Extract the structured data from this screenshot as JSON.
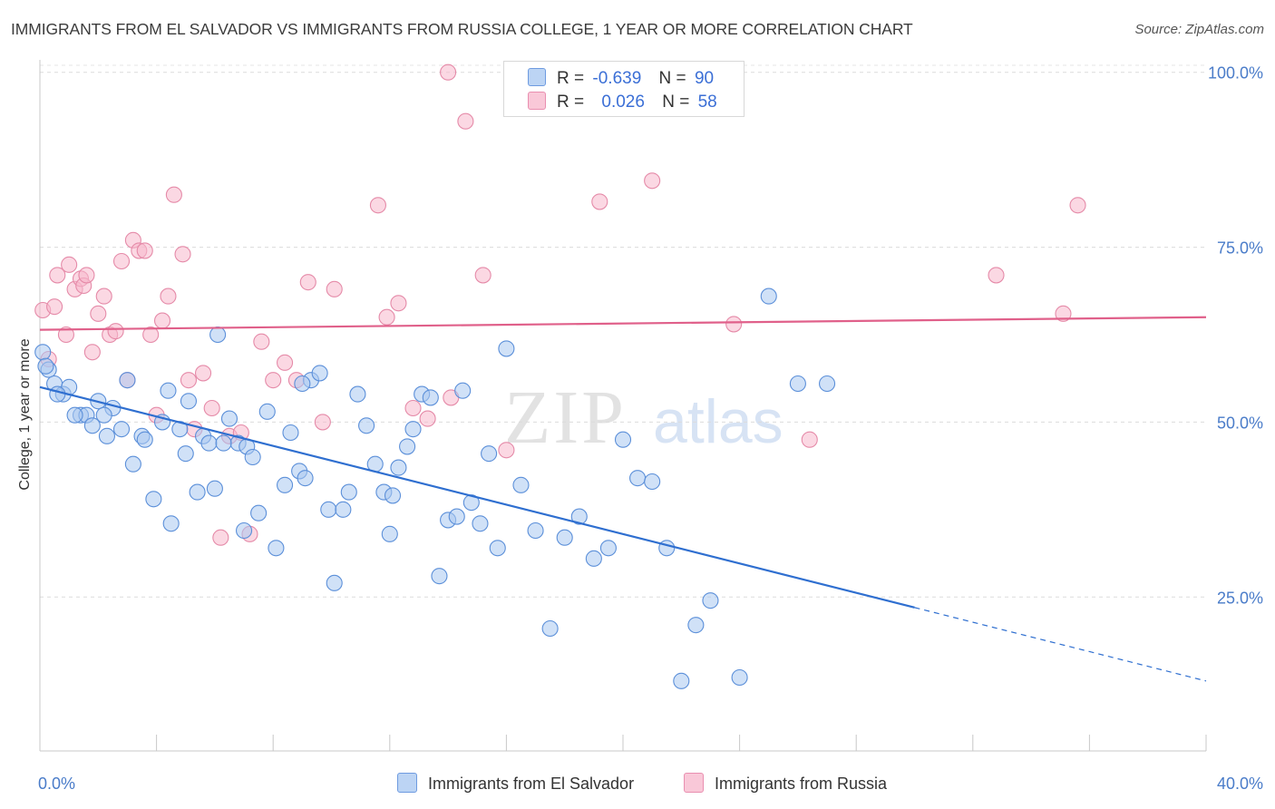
{
  "title": "IMMIGRANTS FROM EL SALVADOR VS IMMIGRANTS FROM RUSSIA COLLEGE, 1 YEAR OR MORE CORRELATION CHART",
  "source": "Source: ZipAtlas.com",
  "watermark": {
    "zip": "ZIP",
    "atlas": "atlas"
  },
  "legend": {
    "rows": [
      {
        "r_label": "R =",
        "r_value": "-0.639",
        "n_label": "N =",
        "n_value": "90"
      },
      {
        "r_label": "R =",
        "r_value": "0.026",
        "n_label": "N =",
        "n_value": "58"
      }
    ]
  },
  "chart_data": {
    "type": "scatter",
    "title": "IMMIGRANTS FROM EL SALVADOR VS IMMIGRANTS FROM RUSSIA COLLEGE, 1 YEAR OR MORE CORRELATION CHART",
    "xlabel": "",
    "ylabel": "College, 1 year or more",
    "xlim": [
      0,
      40
    ],
    "ylim": [
      3,
      101
    ],
    "x_tick_labels": [
      "0.0%",
      "40.0%"
    ],
    "y_ticks": [
      25,
      50,
      75,
      100
    ],
    "y_tick_labels": [
      "25.0%",
      "50.0%",
      "75.0%",
      "100.0%"
    ],
    "grid": true,
    "legend_position": "top-center",
    "series": [
      {
        "name": "Immigrants from El Salvador",
        "color": "#a9c8f0",
        "edge": "#5b8fd9",
        "line_color": "#2f6fd0",
        "r": -0.639,
        "n": 90,
        "trend": {
          "x0": 0.0,
          "y0": 55.0,
          "x1": 30.0,
          "y1": 23.5,
          "dash_to_x": 40.0,
          "dash_to_y": 13.0
        },
        "x": [
          0.1,
          0.3,
          0.5,
          0.8,
          1.0,
          1.4,
          1.6,
          1.8,
          2.0,
          2.3,
          2.5,
          2.8,
          3.2,
          3.5,
          3.6,
          3.9,
          4.2,
          4.4,
          4.5,
          4.8,
          5.0,
          5.1,
          5.4,
          5.6,
          5.8,
          6.0,
          6.1,
          6.5,
          6.8,
          7.0,
          7.1,
          7.3,
          7.5,
          7.8,
          8.1,
          8.4,
          8.6,
          8.9,
          9.1,
          9.3,
          9.6,
          9.9,
          10.1,
          10.4,
          10.6,
          10.9,
          11.2,
          11.5,
          11.8,
          12.0,
          12.3,
          12.6,
          12.8,
          13.1,
          13.4,
          13.7,
          14.0,
          14.3,
          14.5,
          14.8,
          15.1,
          15.4,
          15.7,
          16.0,
          16.5,
          17.0,
          17.5,
          18.0,
          18.5,
          19.0,
          19.5,
          20.0,
          20.5,
          21.0,
          21.5,
          22.0,
          22.5,
          23.0,
          24.0,
          25.0,
          26.0,
          27.0,
          0.2,
          0.6,
          3.0,
          6.3,
          9.0,
          12.1,
          1.2,
          2.2
        ],
        "y": [
          60,
          57.5,
          55.5,
          54,
          55,
          51,
          51,
          49.5,
          53,
          48,
          52,
          49,
          44,
          48,
          47.5,
          39,
          50,
          54.5,
          35.5,
          49,
          45.5,
          53,
          40,
          48,
          47,
          40.5,
          62.5,
          50.5,
          47,
          34.5,
          46.5,
          45,
          37,
          51.5,
          32,
          41,
          48.5,
          43,
          42,
          56,
          57,
          37.5,
          27,
          37.5,
          40,
          54,
          49.5,
          44,
          40,
          34,
          43.5,
          46.5,
          49,
          54,
          53.5,
          28,
          36,
          36.5,
          54.5,
          38.5,
          35.5,
          45.5,
          32,
          60.5,
          41,
          34.5,
          20.5,
          33.5,
          36.5,
          30.5,
          32,
          47.5,
          42,
          41.5,
          32,
          13,
          21,
          24.5,
          13.5,
          68,
          55.5,
          55.5,
          58,
          54,
          56,
          47,
          55.5,
          39.5,
          51,
          51
        ]
      },
      {
        "name": "Immigrants from Russia",
        "color": "#f7b8cc",
        "edge": "#e58aa8",
        "line_color": "#e0608a",
        "r": 0.026,
        "n": 58,
        "trend": {
          "x0": 0.0,
          "y0": 63.2,
          "x1": 40.0,
          "y1": 65.0
        },
        "x": [
          0.1,
          0.3,
          0.5,
          0.6,
          0.9,
          1.0,
          1.2,
          1.4,
          1.5,
          1.6,
          1.8,
          2.0,
          2.2,
          2.4,
          2.6,
          2.8,
          3.0,
          3.2,
          3.4,
          3.6,
          3.8,
          4.0,
          4.2,
          4.4,
          4.6,
          4.9,
          5.1,
          5.3,
          5.6,
          5.9,
          6.2,
          6.5,
          6.9,
          7.2,
          7.6,
          8.0,
          8.4,
          8.8,
          9.2,
          9.7,
          10.1,
          11.6,
          11.9,
          12.3,
          12.8,
          13.3,
          14.0,
          14.6,
          15.2,
          16.0,
          19.2,
          21.0,
          23.8,
          26.4,
          32.8,
          35.1,
          35.6,
          14.1
        ],
        "y": [
          66,
          59,
          66.5,
          71,
          62.5,
          72.5,
          69,
          70.5,
          69.5,
          71,
          60,
          65.5,
          68,
          62.5,
          63,
          73,
          56,
          76,
          74.5,
          74.5,
          62.5,
          51,
          64.5,
          68,
          82.5,
          74,
          56,
          49,
          57,
          52,
          33.5,
          48,
          48.5,
          34,
          61.5,
          56,
          58.5,
          56,
          70,
          50,
          69,
          81,
          65,
          67,
          52,
          50.5,
          100,
          93,
          71,
          46,
          81.5,
          84.5,
          64,
          47.5,
          71,
          65.5,
          81,
          53.5
        ]
      }
    ]
  }
}
